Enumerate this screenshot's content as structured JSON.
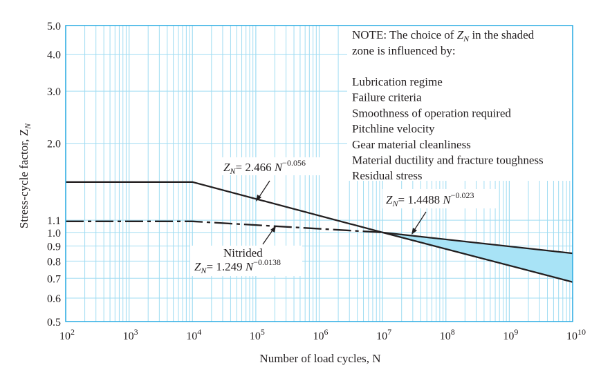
{
  "chart_data": {
    "type": "line",
    "xscale": "log",
    "yscale": "log",
    "xlim": [
      100,
      10000000000
    ],
    "ylim": [
      0.5,
      5.0
    ],
    "xlabel": "Number of load cycles, N",
    "ylabel": "Stress-cycle factor, Z",
    "ylabel_subscript": "N",
    "x_ticks": [
      {
        "base": "10",
        "exp": "2",
        "value": 100
      },
      {
        "base": "10",
        "exp": "3",
        "value": 1000
      },
      {
        "base": "10",
        "exp": "4",
        "value": 10000
      },
      {
        "base": "10",
        "exp": "5",
        "value": 100000
      },
      {
        "base": "10",
        "exp": "6",
        "value": 1000000
      },
      {
        "base": "10",
        "exp": "7",
        "value": 10000000
      },
      {
        "base": "10",
        "exp": "8",
        "value": 100000000
      },
      {
        "base": "10",
        "exp": "9",
        "value": 1000000000
      },
      {
        "base": "10",
        "exp": "10",
        "value": 10000000000
      }
    ],
    "y_ticks": [
      {
        "label": "5.0",
        "value": 5.0
      },
      {
        "label": "4.0",
        "value": 4.0
      },
      {
        "label": "3.0",
        "value": 3.0
      },
      {
        "label": "2.0",
        "value": 2.0
      },
      {
        "label": "1.1",
        "value": 1.1
      },
      {
        "label": "1.0",
        "value": 1.0
      },
      {
        "label": "0.9",
        "value": 0.9
      },
      {
        "label": "0.8",
        "value": 0.8
      },
      {
        "label": "0.7",
        "value": 0.7
      },
      {
        "label": "0.6",
        "value": 0.6
      },
      {
        "label": "0.5",
        "value": 0.5
      }
    ],
    "series": [
      {
        "style": "solid",
        "x": [
          100,
          10000,
          10000000,
          10000000000
        ],
        "y": [
          1.48,
          1.48,
          1.0,
          0.68
        ]
      },
      {
        "style": "dashdot",
        "x": [
          100,
          10000,
          10000000
        ],
        "y": [
          1.09,
          1.09,
          1.0
        ]
      },
      {
        "style": "solid",
        "x": [
          10000000,
          10000000000
        ],
        "y": [
          1.0,
          0.85
        ]
      }
    ],
    "shaded_zone": {
      "x": [
        10000000,
        10000000000
      ],
      "upper": [
        1.0,
        0.85
      ],
      "lower": [
        1.0,
        0.68
      ],
      "color": "#a8e3f6"
    },
    "annotations": {
      "eq1": {
        "lhs": "Z",
        "sub": "N",
        "rhs": "= 2.466",
        "var": "N",
        "exp": "−0.056"
      },
      "eq2": {
        "lhs": "Z",
        "sub": "N",
        "rhs": "= 1.4488",
        "var": "N",
        "exp": "−0.023"
      },
      "eq3_label": "Nitrided",
      "eq3": {
        "lhs": "Z",
        "sub": "N",
        "rhs": "= 1.249",
        "var": "N",
        "exp": "−0.0138"
      }
    },
    "note": {
      "line1_a": "NOTE:  The choice of ",
      "line1_z": "Z",
      "line1_sub": "N",
      "line1_b": " in the shaded",
      "line2": "zone is influenced by:",
      "items": [
        "Lubrication regime",
        "Failure criteria",
        "Smoothness of operation required",
        "Pitchline velocity",
        "Gear material cleanliness",
        "Material ductility and fracture toughness",
        "Residual stress"
      ]
    },
    "colors": {
      "grid": "#9fdcf2",
      "frame": "#29abe2",
      "line": "#231f20",
      "shade": "#a8e3f6"
    }
  }
}
